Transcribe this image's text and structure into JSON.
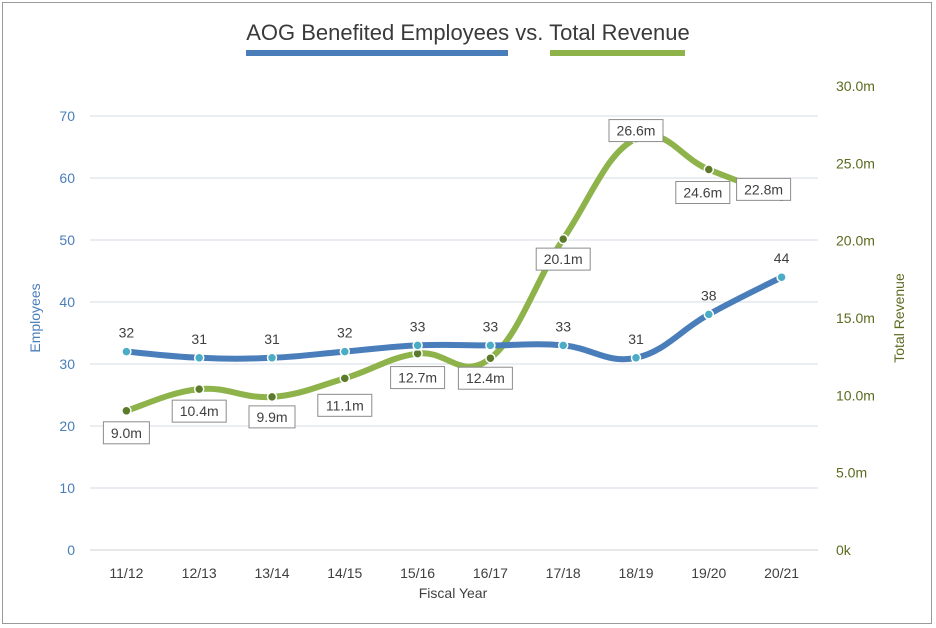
{
  "chart_data": {
    "type": "line",
    "title": "AOG Benefited Employees vs. Total Revenue",
    "xlabel": "Fiscal Year",
    "ylabel": "Employees",
    "y2label": "Total Revenue",
    "categories": [
      "11/12",
      "12/13",
      "13/14",
      "14/15",
      "15/16",
      "16/17",
      "17/18",
      "18/19",
      "19/20",
      "20/21"
    ],
    "ylim": [
      0,
      70
    ],
    "y_ticks": [
      "0",
      "10",
      "20",
      "30",
      "40",
      "50",
      "60",
      "70"
    ],
    "y2lim": [
      0,
      30
    ],
    "y2_ticks": [
      "0k",
      "5.0m",
      "10.0m",
      "15.0m",
      "20.0m",
      "25.0m",
      "30.0m"
    ],
    "grid": true,
    "legend": "top",
    "series": [
      {
        "name": "",
        "axis": "left",
        "color": "#4a7ebb",
        "marker_color": "#4bacc6",
        "values": [
          32,
          31,
          31,
          32,
          33,
          33,
          33,
          31,
          38,
          44
        ],
        "labels": [
          "32",
          "31",
          "31",
          "32",
          "33",
          "33",
          "33",
          "31",
          "38",
          "44"
        ]
      },
      {
        "name": "",
        "axis": "right",
        "color": "#8db34a",
        "marker_color": "#5b7a2a",
        "values": [
          9.0,
          10.4,
          9.9,
          11.1,
          12.7,
          12.4,
          20.1,
          26.6,
          24.6,
          22.8
        ],
        "labels": [
          "9.0m",
          "10.4m",
          "9.9m",
          "11.1m",
          "12.7m",
          "12.4m",
          "20.1m",
          "26.6m",
          "24.6m",
          "22.8m"
        ]
      }
    ]
  }
}
